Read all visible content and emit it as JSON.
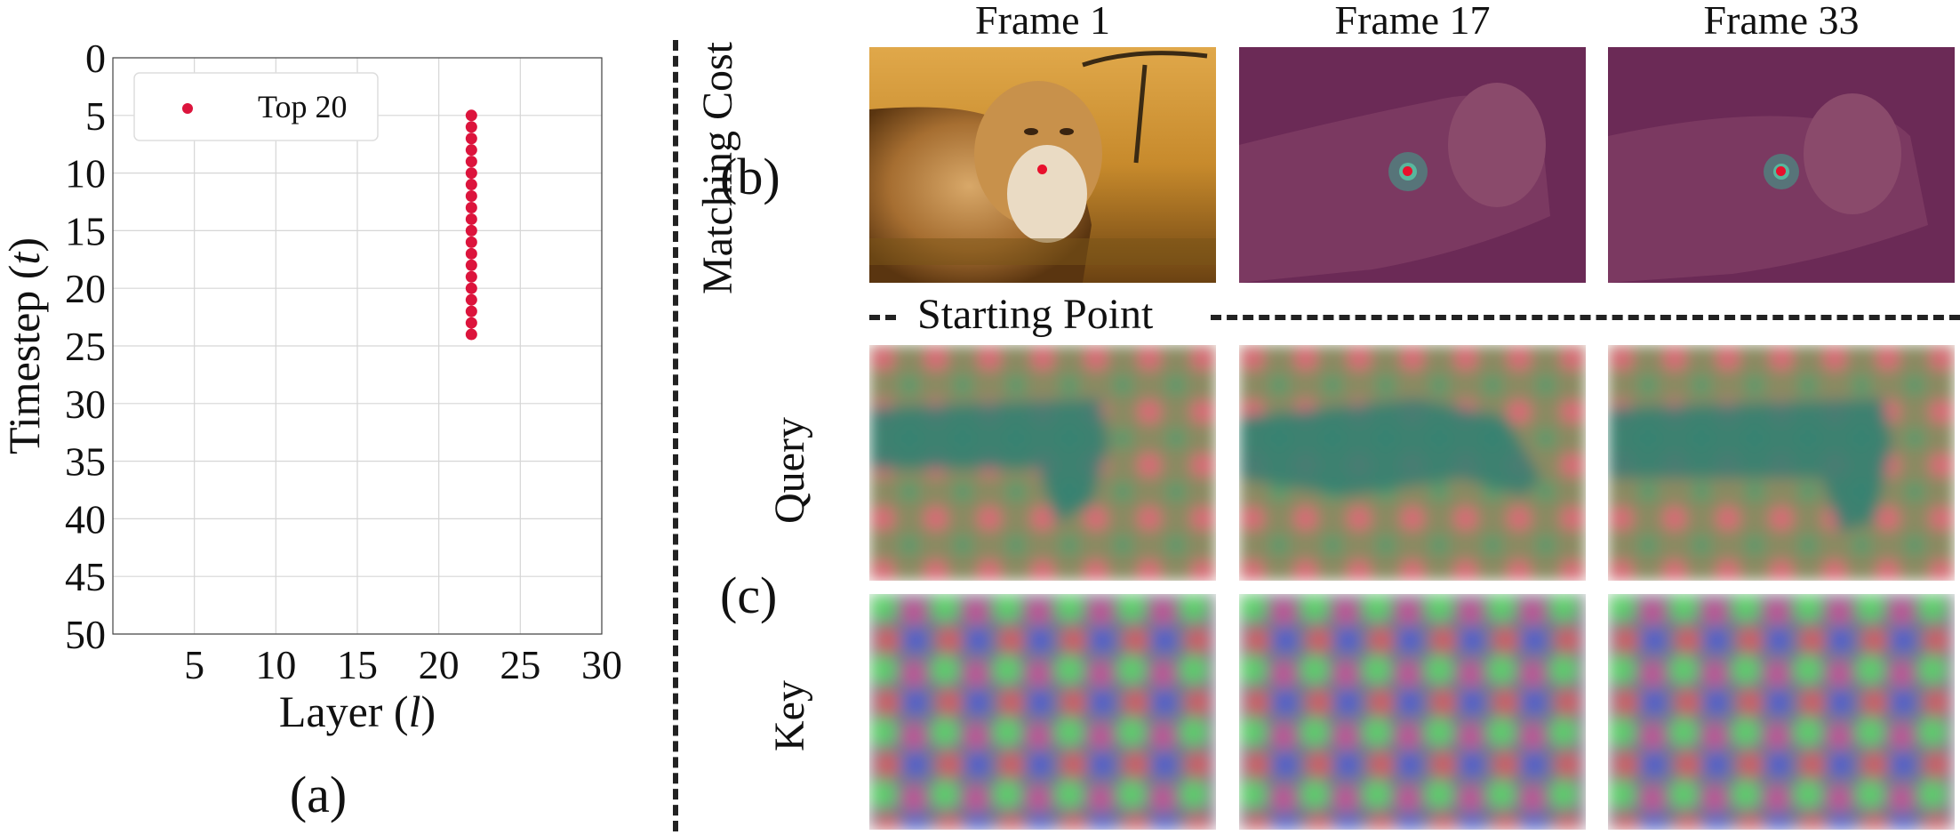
{
  "chart_data": {
    "type": "scatter",
    "panel_label": "(a)",
    "xlabel": "Layer (l)",
    "ylabel": "Timestep (t)",
    "xlim": [
      0,
      30
    ],
    "ylim": [
      50,
      0
    ],
    "y_inverted": true,
    "x_ticks": [
      5,
      10,
      15,
      20,
      25,
      30
    ],
    "y_ticks": [
      0,
      5,
      10,
      15,
      20,
      25,
      30,
      35,
      40,
      45,
      50
    ],
    "grid": true,
    "legend_position": "top-left",
    "series": [
      {
        "name": "Top 20",
        "color": "#dc143c",
        "x": [
          22,
          22,
          22,
          22,
          22,
          22,
          22,
          22,
          22,
          22,
          22,
          22,
          22,
          22,
          22,
          22,
          22,
          22,
          22,
          22
        ],
        "y": [
          5,
          6,
          7,
          8,
          9,
          10,
          11,
          12,
          13,
          14,
          15,
          16,
          17,
          18,
          19,
          20,
          21,
          22,
          23,
          24
        ]
      }
    ]
  },
  "right_panel": {
    "column_titles": [
      "Frame 1",
      "Frame 17",
      "Frame 33"
    ],
    "row_labels": {
      "matching_cost": "Matching Cost",
      "query": "Query",
      "key": "Key"
    },
    "panel_b_label": "(b)",
    "panel_c_label": "(c)",
    "separator_label": "Starting Point",
    "point_color": "#e8102c"
  }
}
